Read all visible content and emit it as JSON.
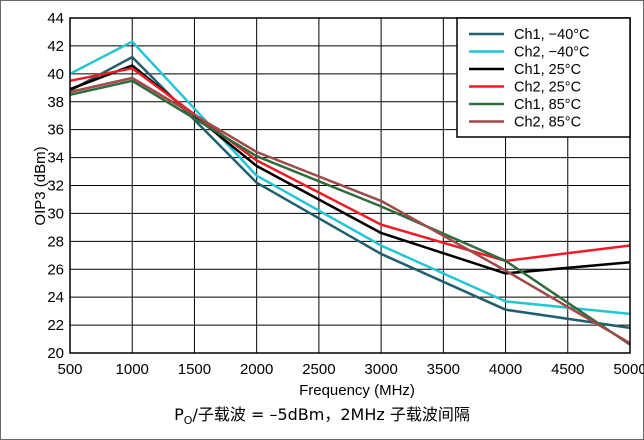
{
  "chart_data": {
    "type": "line",
    "xlabel": "Frequency (MHz)",
    "ylabel": "OIP3 (dBm)",
    "xlim": [
      500,
      5000
    ],
    "ylim": [
      20,
      44
    ],
    "xticks": [
      500,
      1000,
      1500,
      2000,
      2500,
      3000,
      3500,
      4000,
      4500,
      5000
    ],
    "yticks": [
      20,
      22,
      24,
      26,
      28,
      30,
      32,
      34,
      36,
      38,
      40,
      42,
      44
    ],
    "grid": true,
    "legend_position": "top-right",
    "x": [
      500,
      1000,
      2000,
      3000,
      4000,
      5000
    ],
    "series": [
      {
        "name": "Ch1, −40°C",
        "color": "#1f5f6e",
        "values": [
          38.8,
          41.2,
          32.2,
          27.1,
          23.1,
          21.8
        ]
      },
      {
        "name": "Ch2, −40°C",
        "color": "#22c5d6",
        "values": [
          40.0,
          42.3,
          32.7,
          27.7,
          23.7,
          22.8
        ]
      },
      {
        "name": "Ch1, 25°C",
        "color": "#000000",
        "values": [
          38.9,
          40.6,
          33.4,
          28.6,
          25.7,
          26.5
        ]
      },
      {
        "name": "Ch2, 25°C",
        "color": "#ee1c24",
        "values": [
          39.5,
          40.4,
          33.8,
          29.2,
          26.6,
          27.7
        ]
      },
      {
        "name": "Ch1, 85°C",
        "color": "#2e6b3d",
        "values": [
          38.5,
          39.5,
          34.1,
          30.5,
          26.6,
          20.6
        ]
      },
      {
        "name": "Ch2, 85°C",
        "color": "#a04a4a",
        "values": [
          38.7,
          39.7,
          34.4,
          30.9,
          25.9,
          20.7
        ]
      }
    ]
  },
  "caption": {
    "p": "P",
    "sub": "O",
    "rest": "/子载波 = –5dBm，2MHz 子载波间隔"
  }
}
